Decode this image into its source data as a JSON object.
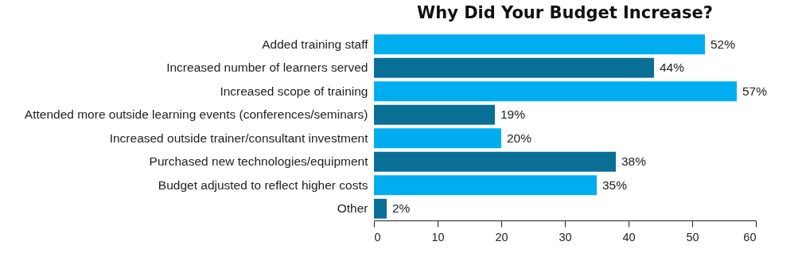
{
  "chart_data": {
    "type": "bar",
    "orientation": "horizontal",
    "title": "Why Did Your Budget Increase?",
    "categories": [
      "Added training staff",
      "Increased number of learners served",
      "Increased scope of training",
      "Attended more outside learning events (conferences/seminars)",
      "Increased outside trainer/consultant investment",
      "Purchased new technologies/equipment",
      "Budget adjusted to reflect higher costs",
      "Other"
    ],
    "values": [
      52,
      44,
      57,
      19,
      20,
      38,
      35,
      2
    ],
    "colors": [
      "#00aeef",
      "#0a6f96",
      "#00aeef",
      "#0a6f96",
      "#00aeef",
      "#0a6f96",
      "#00aeef",
      "#0a6f96"
    ],
    "value_labels": [
      "52%",
      "44%",
      "57%",
      "19%",
      "20%",
      "38%",
      "35%",
      "2%"
    ],
    "xlim": [
      0,
      60
    ],
    "xticks": [
      0,
      10,
      20,
      30,
      40,
      50,
      60
    ],
    "grid": false
  }
}
